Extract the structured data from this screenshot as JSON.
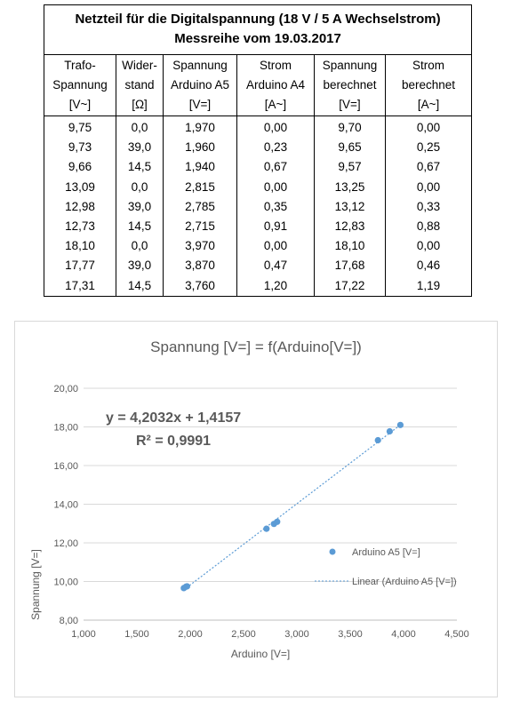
{
  "table": {
    "title_line1": "Netzteil für die Digitalspannung (18 V / 5 A Wechselstrom)",
    "title_line2": "Messreihe vom 19.03.2017",
    "headers": [
      [
        "Trafo-",
        "Spannung",
        "[V~]"
      ],
      [
        "Wider-",
        "stand",
        "[Ω]"
      ],
      [
        "Spannung",
        "Arduino A5",
        "[V=]"
      ],
      [
        "Strom",
        "Arduino A4",
        "[A~]"
      ],
      [
        "Spannung",
        "berechnet",
        "[V=]"
      ],
      [
        "Strom",
        "berechnet",
        "[A~]"
      ]
    ],
    "rows": [
      [
        "9,75",
        "0,0",
        "1,970",
        "0,00",
        "9,70",
        "0,00"
      ],
      [
        "9,73",
        "39,0",
        "1,960",
        "0,23",
        "9,65",
        "0,25"
      ],
      [
        "9,66",
        "14,5",
        "1,940",
        "0,67",
        "9,57",
        "0,67"
      ],
      [
        "13,09",
        "0,0",
        "2,815",
        "0,00",
        "13,25",
        "0,00"
      ],
      [
        "12,98",
        "39,0",
        "2,785",
        "0,35",
        "13,12",
        "0,33"
      ],
      [
        "12,73",
        "14,5",
        "2,715",
        "0,91",
        "12,83",
        "0,88"
      ],
      [
        "18,10",
        "0,0",
        "3,970",
        "0,00",
        "18,10",
        "0,00"
      ],
      [
        "17,77",
        "39,0",
        "3,870",
        "0,47",
        "17,68",
        "0,46"
      ],
      [
        "17,31",
        "14,5",
        "3,760",
        "1,20",
        "17,22",
        "1,19"
      ]
    ]
  },
  "chart_data": {
    "type": "scatter",
    "title": "Spannung [V=] = f(Arduino[V=])",
    "xlabel": "Arduino [V=]",
    "ylabel": "Spannung [V=]",
    "xlim": [
      1.0,
      4.5
    ],
    "ylim": [
      8.0,
      20.0
    ],
    "x_ticks": [
      1.0,
      1.5,
      2.0,
      2.5,
      3.0,
      3.5,
      4.0,
      4.5
    ],
    "x_tick_labels": [
      "1,000",
      "1,500",
      "2,000",
      "2,500",
      "3,000",
      "3,500",
      "4,000",
      "4,500"
    ],
    "y_ticks": [
      8,
      10,
      12,
      14,
      16,
      18,
      20
    ],
    "y_tick_labels": [
      "8,00",
      "10,00",
      "12,00",
      "14,00",
      "16,00",
      "18,00",
      "20,00"
    ],
    "grid": true,
    "legend_position": "right",
    "series": [
      {
        "name": "Arduino A5 [V=]",
        "color": "#5b9bd5",
        "x": [
          1.97,
          1.96,
          1.94,
          2.815,
          2.785,
          2.715,
          3.97,
          3.87,
          3.76
        ],
        "y": [
          9.75,
          9.73,
          9.66,
          13.09,
          12.98,
          12.73,
          18.1,
          17.77,
          17.31
        ]
      }
    ],
    "trendline": {
      "name": "Linear (Arduino A5 [V=])",
      "slope": 4.2032,
      "intercept": 1.4157,
      "equation": "y = 4,2032x + 1,4157",
      "r_squared": "R² = 0,9991",
      "color": "#5b9bd5"
    }
  }
}
